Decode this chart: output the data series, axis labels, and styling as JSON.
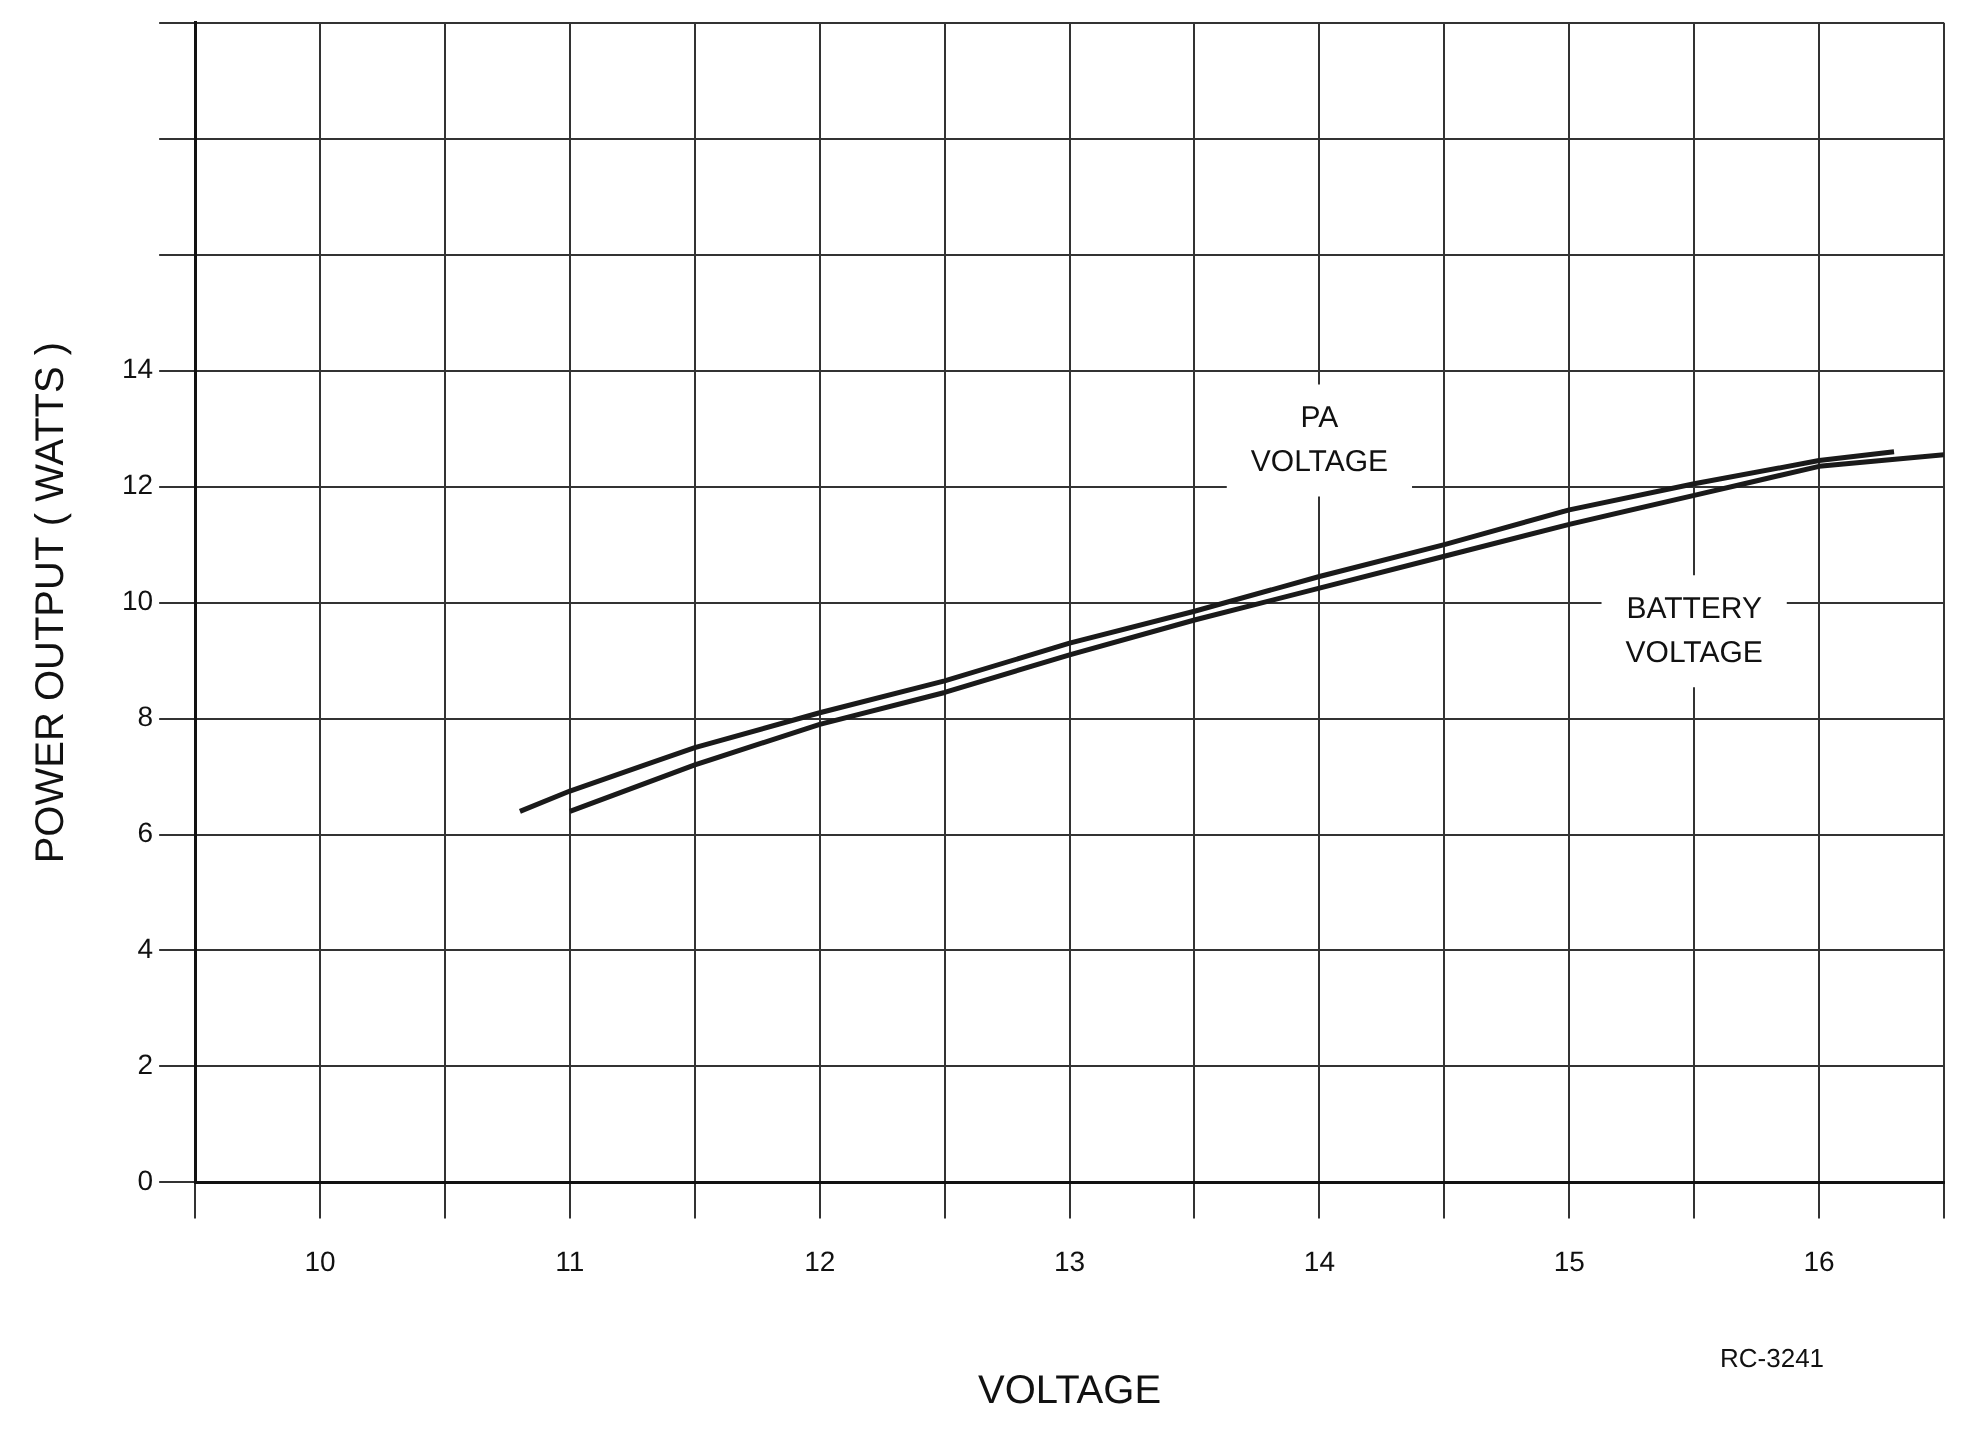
{
  "chart_data": {
    "type": "line",
    "xlabel": "VOLTAGE",
    "ylabel": "POWER OUTPUT ( WATTS )",
    "annotations": [
      "RC-3241"
    ],
    "xlim": [
      9.5,
      16.5
    ],
    "ylim": [
      0,
      20
    ],
    "xticks": [
      {
        "value": 9.5,
        "label": null
      },
      10,
      {
        "value": 10.5,
        "label": null
      },
      11,
      {
        "value": 11.5,
        "label": null
      },
      12,
      {
        "value": 12.5,
        "label": null
      },
      13,
      {
        "value": 13.5,
        "label": null
      },
      14,
      {
        "value": 14.5,
        "label": null
      },
      15,
      {
        "value": 15.5,
        "label": null
      },
      16,
      {
        "value": 16.5,
        "label": null
      }
    ],
    "yticks": [
      0,
      2,
      4,
      6,
      8,
      10,
      12,
      14,
      {
        "value": 16,
        "label": null
      },
      {
        "value": 18,
        "label": null
      },
      {
        "value": 20,
        "label": null
      }
    ],
    "grid": true,
    "legend": false,
    "marker": "none",
    "line_style": "solid",
    "series": [
      {
        "name": "PA VOLTAGE",
        "color": "#1a1a1a",
        "x": [
          10.8,
          11,
          11.5,
          12,
          12.5,
          13,
          13.5,
          14,
          14.5,
          15,
          15.5,
          16,
          16.3
        ],
        "values": [
          6.4,
          6.75,
          7.5,
          8.1,
          8.65,
          9.3,
          9.85,
          10.45,
          11.0,
          11.6,
          12.05,
          12.45,
          12.6
        ]
      },
      {
        "name": "BATTERY VOLTAGE",
        "color": "#1a1a1a",
        "x": [
          11,
          11.5,
          12,
          12.5,
          13,
          13.5,
          14,
          14.5,
          15,
          15.5,
          15.7,
          16,
          16.5
        ],
        "values": [
          6.4,
          7.2,
          7.9,
          8.45,
          9.1,
          9.7,
          10.25,
          10.8,
          11.35,
          11.85,
          12.05,
          12.35,
          12.55
        ]
      }
    ]
  }
}
